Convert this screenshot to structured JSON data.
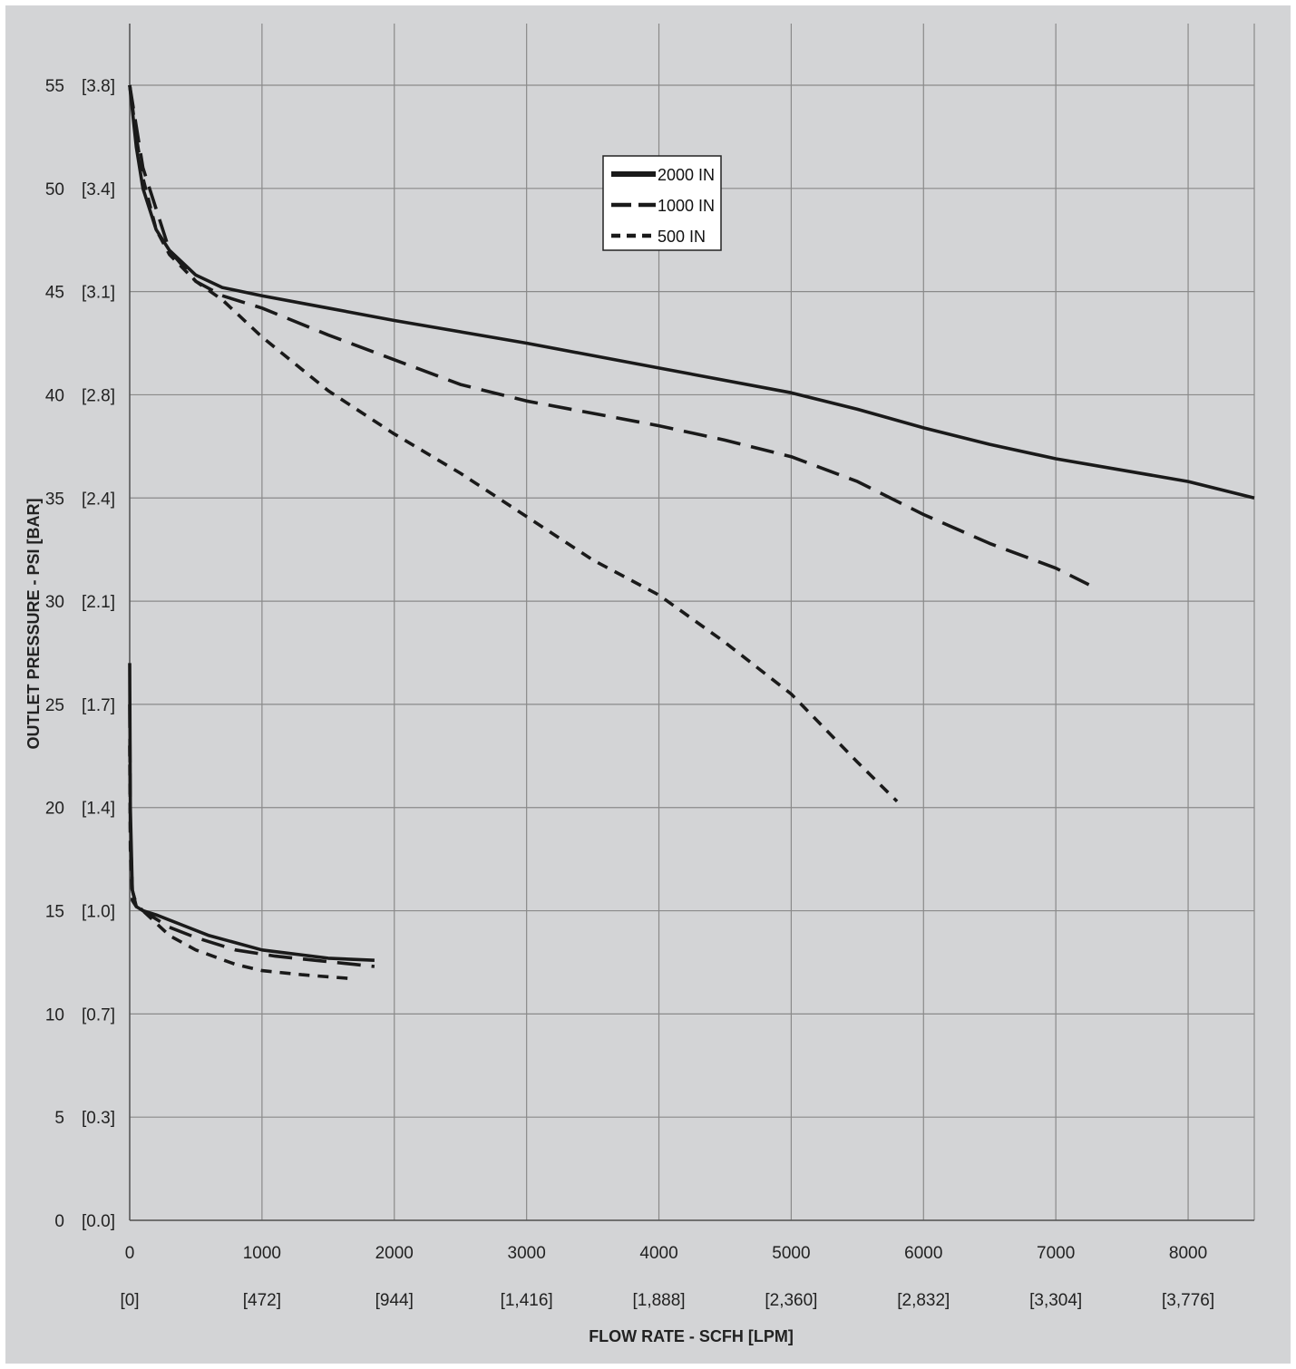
{
  "chart_data": {
    "type": "line",
    "title": "",
    "xlabel": "FLOW RATE - SCFH [LPM]",
    "ylabel": "OUTLET PRESSURE - PSI [BAR]",
    "xlim": [
      0,
      8500
    ],
    "ylim": [
      0,
      55
    ],
    "x_ticks": [
      "0",
      "1000",
      "2000",
      "3000",
      "4000",
      "5000",
      "6000",
      "7000",
      "8000"
    ],
    "x_ticks_secondary": [
      "[0]",
      "[472]",
      "[944]",
      "[1,416]",
      "[1,888]",
      "[2,360]",
      "[2,832]",
      "[3,304]",
      "[3,776]"
    ],
    "y_ticks": [
      "0",
      "5",
      "10",
      "15",
      "20",
      "25",
      "30",
      "35",
      "40",
      "45",
      "50",
      "55"
    ],
    "y_ticks_secondary": [
      "[0.0]",
      "[0.3]",
      "[0.7]",
      "[1.0]",
      "[1.4]",
      "[1.7]",
      "[2.1]",
      "[2.4]",
      "[2.8]",
      "[3.1]",
      "[3.4]",
      "[3.8]"
    ],
    "grid": true,
    "legend_position": "top-center",
    "series": [
      {
        "name": "2000 IN",
        "style": "solid",
        "color": "#1a1a1a",
        "curves": [
          {
            "x": [
              0,
              50,
              100,
              200,
              300,
              500,
              700,
              1000,
              1500,
              2000,
              3000,
              4000,
              5000,
              5500,
              6000,
              6500,
              7000,
              8000,
              8500
            ],
            "y": [
              55,
              52,
              50,
              48,
              47,
              45.8,
              45.2,
              44.8,
              44.2,
              43.6,
              42.5,
              41.3,
              40.1,
              39.3,
              38.4,
              37.6,
              36.9,
              35.8,
              35
            ]
          },
          {
            "x": [
              0,
              5,
              20,
              50,
              100,
              200,
              400,
              600,
              1000,
              1500,
              1850
            ],
            "y": [
              27,
              20,
              16,
              15.2,
              15,
              14.8,
              14.3,
              13.8,
              13.1,
              12.7,
              12.6
            ]
          }
        ]
      },
      {
        "name": "1000 IN",
        "style": "dashed",
        "color": "#1a1a1a",
        "curves": [
          {
            "x": [
              0,
              50,
              100,
              200,
              300,
              500,
              700,
              1000,
              1500,
              2000,
              2500,
              3000,
              3500,
              4000,
              4500,
              5000,
              5500,
              6000,
              6500,
              7000,
              7250
            ],
            "y": [
              55,
              53,
              51,
              49,
              47,
              45.5,
              44.8,
              44.2,
              42.9,
              41.7,
              40.5,
              39.7,
              39.1,
              38.5,
              37.8,
              37,
              35.8,
              34.2,
              32.8,
              31.6,
              30.8
            ]
          },
          {
            "x": [
              0,
              5,
              20,
              50,
              100,
              200,
              300,
              500,
              800,
              1100,
              1400,
              1700,
              1850
            ],
            "y": [
              25,
              19,
              16,
              15.3,
              15,
              14.6,
              14.2,
              13.7,
              13.1,
              12.8,
              12.6,
              12.4,
              12.3
            ]
          }
        ]
      },
      {
        "name": "500 IN",
        "style": "dotted",
        "color": "#1a1a1a",
        "curves": [
          {
            "x": [
              0,
              50,
              100,
              200,
              300,
              500,
              700,
              1000,
              1500,
              2000,
              2500,
              3000,
              3500,
              4000,
              4500,
              5000,
              5500,
              5800
            ],
            "y": [
              55,
              52.5,
              50.5,
              48,
              46.8,
              45.5,
              44.6,
              42.8,
              40.2,
              38.1,
              36.2,
              34.1,
              32,
              30.3,
              28,
              25.5,
              22.2,
              20.3
            ]
          },
          {
            "x": [
              0,
              5,
              20,
              50,
              100,
              200,
              300,
              500,
              800,
              1000,
              1300,
              1700
            ],
            "y": [
              23,
              18,
              15.5,
              15.2,
              15,
              14.4,
              13.8,
              13.1,
              12.4,
              12.1,
              11.9,
              11.7
            ]
          }
        ]
      }
    ]
  }
}
